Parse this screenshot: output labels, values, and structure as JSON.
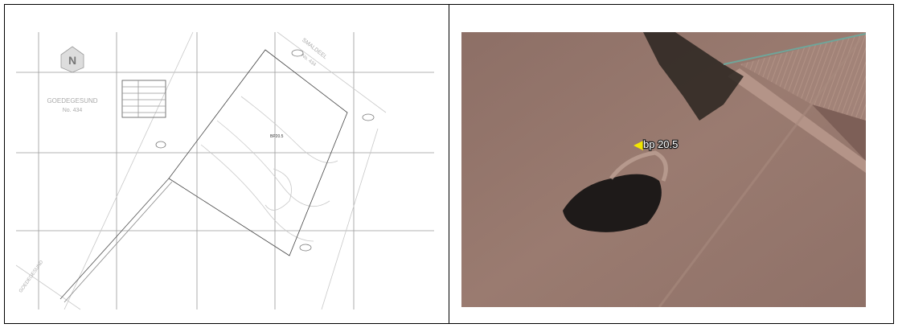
{
  "left_image": {
    "labels": [
      "GOEDEGESUND",
      "No. 434",
      "SMALDEEL",
      "No. 434",
      "BP20.5",
      "GOEDEGESUND"
    ]
  },
  "right_image": {
    "label": "bp 20.5"
  }
}
